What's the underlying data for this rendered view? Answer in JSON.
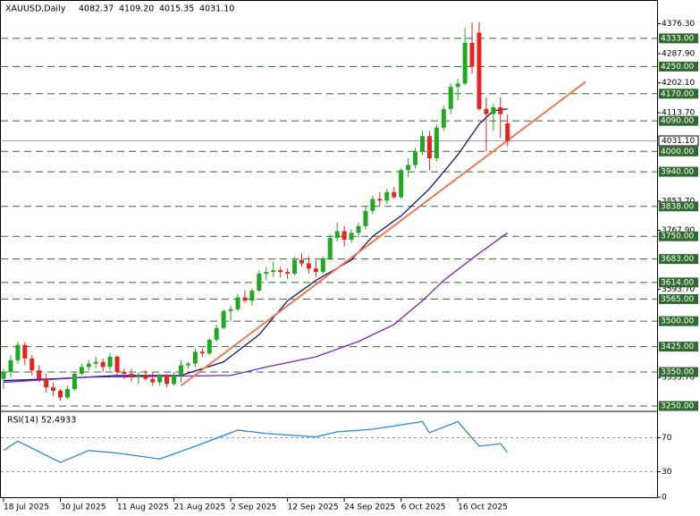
{
  "chart_data": [
    {
      "type": "candlestick",
      "title": "XAUUSD,Daily",
      "header_values": [
        "4082.37",
        "4109.20",
        "4015.35",
        "4031.10"
      ],
      "up_color": "#21a821",
      "down_color": "#e8231f",
      "open": [
        3330,
        3350,
        3385,
        3430,
        3390,
        3355,
        3330,
        3305,
        3295,
        3275,
        3300,
        3345,
        3365,
        3375,
        3380,
        3365,
        3395,
        3350,
        3345,
        3335,
        3340,
        3330,
        3320,
        3340,
        3315,
        3340,
        3370,
        3375,
        3410,
        3405,
        3445,
        3480,
        3530,
        3535,
        3570,
        3560,
        3590,
        3640,
        3645,
        3650,
        3645,
        3640,
        3680,
        3670,
        3655,
        3645,
        3685,
        3745,
        3765,
        3740,
        3760,
        3780,
        3825,
        3860,
        3855,
        3880,
        3865,
        3945,
        3960,
        4000,
        4045,
        3980,
        4070,
        4125,
        4190,
        4200,
        4320,
        4350,
        4125,
        4110,
        4130,
        4082.37
      ],
      "high": [
        3360,
        3400,
        3440,
        3438,
        3400,
        3370,
        3345,
        3320,
        3300,
        3310,
        3350,
        3375,
        3385,
        3395,
        3390,
        3405,
        3400,
        3360,
        3360,
        3350,
        3355,
        3350,
        3345,
        3345,
        3350,
        3385,
        3380,
        3420,
        3420,
        3450,
        3490,
        3535,
        3545,
        3580,
        3590,
        3595,
        3650,
        3660,
        3675,
        3660,
        3655,
        3690,
        3700,
        3690,
        3680,
        3690,
        3755,
        3790,
        3780,
        3770,
        3790,
        3840,
        3870,
        3880,
        3890,
        3895,
        3950,
        3980,
        4010,
        4060,
        4060,
        4080,
        4135,
        4200,
        4215,
        4365,
        4380,
        4380,
        4160,
        4140,
        4160,
        4109.2
      ],
      "low": [
        3300,
        3335,
        3375,
        3370,
        3340,
        3320,
        3290,
        3280,
        3265,
        3270,
        3295,
        3340,
        3355,
        3360,
        3350,
        3355,
        3340,
        3330,
        3320,
        3315,
        3325,
        3310,
        3310,
        3305,
        3310,
        3320,
        3360,
        3365,
        3395,
        3400,
        3440,
        3475,
        3500,
        3530,
        3555,
        3545,
        3585,
        3620,
        3630,
        3630,
        3625,
        3635,
        3660,
        3640,
        3630,
        3640,
        3680,
        3735,
        3720,
        3730,
        3745,
        3770,
        3815,
        3840,
        3845,
        3860,
        3860,
        3925,
        3950,
        3990,
        3945,
        3970,
        4060,
        4110,
        4150,
        4195,
        4230,
        4120,
        4000,
        4060,
        4040,
        4015.35
      ],
      "close": [
        3350,
        3385,
        3430,
        3390,
        3355,
        3330,
        3305,
        3295,
        3275,
        3300,
        3345,
        3365,
        3375,
        3380,
        3365,
        3395,
        3350,
        3345,
        3335,
        3340,
        3330,
        3320,
        3340,
        3315,
        3340,
        3370,
        3375,
        3410,
        3405,
        3445,
        3480,
        3530,
        3535,
        3570,
        3560,
        3590,
        3640,
        3645,
        3650,
        3645,
        3640,
        3680,
        3670,
        3655,
        3645,
        3685,
        3745,
        3765,
        3740,
        3760,
        3780,
        3825,
        3860,
        3855,
        3880,
        3865,
        3945,
        3960,
        4000,
        4045,
        3980,
        4070,
        4125,
        4190,
        4200,
        4320,
        4250,
        4125,
        4110,
        4130,
        4110,
        4031.1
      ],
      "xticks": [
        {
          "value": 0,
          "label": "18 Jul 2025"
        },
        {
          "value": 8,
          "label": "30 Jul 2025"
        },
        {
          "value": 16,
          "label": "11 Aug 2025"
        },
        {
          "value": 24,
          "label": "21 Aug 2025"
        },
        {
          "value": 32,
          "label": "2 Sep 2025"
        },
        {
          "value": 40,
          "label": "12 Sep 2025"
        },
        {
          "value": 48,
          "label": "24 Sep 2025"
        },
        {
          "value": 56,
          "label": "6 Oct 2025"
        },
        {
          "value": 64,
          "label": "16 Oct 2025"
        }
      ],
      "xlim": [
        -0.5,
        92
      ],
      "ylim": [
        3239.5,
        4446
      ],
      "yticks": [
        {
          "value": 4376.3,
          "label": "4376.30"
        },
        {
          "value": 4287.9,
          "label": "4287.90"
        },
        {
          "value": 4202.1,
          "label": "4202.10"
        },
        {
          "value": 4113.7,
          "label": "4113.70"
        },
        {
          "value": 3853.7,
          "label": "3853.70"
        },
        {
          "value": 3767.9,
          "label": "3767.90"
        },
        {
          "value": 3593.7,
          "label": "3593.70"
        },
        {
          "value": 3333.7,
          "label": "3333.70"
        }
      ],
      "level_color": "#2f6b2f",
      "levels": [
        {
          "value": 4333,
          "label": "4333.00"
        },
        {
          "value": 4250,
          "label": "4250.00"
        },
        {
          "value": 4170,
          "label": "4170.00"
        },
        {
          "value": 4090,
          "label": "4090.00"
        },
        {
          "value": 4000,
          "label": "4000.00"
        },
        {
          "value": 3940,
          "label": "3940.00"
        },
        {
          "value": 3838,
          "label": "3838.00"
        },
        {
          "value": 3750,
          "label": "3750.00"
        },
        {
          "value": 3683,
          "label": "3683.00"
        },
        {
          "value": 3614,
          "label": "3614.00"
        },
        {
          "value": 3565,
          "label": "3565.00"
        },
        {
          "value": 3500,
          "label": "3500.00"
        },
        {
          "value": 3425,
          "label": "3425.00"
        },
        {
          "value": 3350,
          "label": "3350.00"
        },
        {
          "value": 3250,
          "label": "3250.00"
        }
      ],
      "current_price": {
        "value": 4031.1,
        "label": "4031.10"
      },
      "series": [
        {
          "color": "#14146e",
          "x": [
            0,
            7,
            16,
            25,
            31,
            36,
            40,
            44,
            49,
            52,
            56,
            60,
            64,
            67,
            69,
            71
          ],
          "values": [
            3325,
            3330,
            3340,
            3340,
            3380,
            3460,
            3560,
            3620,
            3680,
            3750,
            3810,
            3890,
            3990,
            4080,
            4120,
            4125
          ]
        },
        {
          "color": "#7a22c8",
          "x": [
            0,
            12,
            32,
            37,
            44,
            50,
            55,
            59,
            62,
            67,
            71
          ],
          "values": [
            3320,
            3335,
            3340,
            3365,
            3395,
            3440,
            3490,
            3560,
            3620,
            3700,
            3760
          ]
        },
        {
          "color": "#f07850",
          "x": [
            25,
            82
          ],
          "values": [
            3310,
            4205
          ]
        }
      ]
    },
    {
      "type": "line",
      "title": "RSI(14) 52.4933",
      "ylim": [
        0,
        100
      ],
      "yticks": [
        70,
        30,
        0
      ],
      "levels": [
        70,
        30
      ],
      "series": [
        {
          "color": "#2a8ad8",
          "x": [
            0,
            2,
            8,
            12,
            16,
            22,
            27,
            33,
            37,
            44,
            47,
            52,
            59,
            60,
            64,
            67,
            70,
            71
          ],
          "values": [
            55,
            66,
            41,
            55,
            52,
            45,
            60,
            79,
            75,
            71,
            77,
            80,
            89,
            76,
            89,
            60,
            63,
            52.4933
          ]
        }
      ]
    }
  ]
}
